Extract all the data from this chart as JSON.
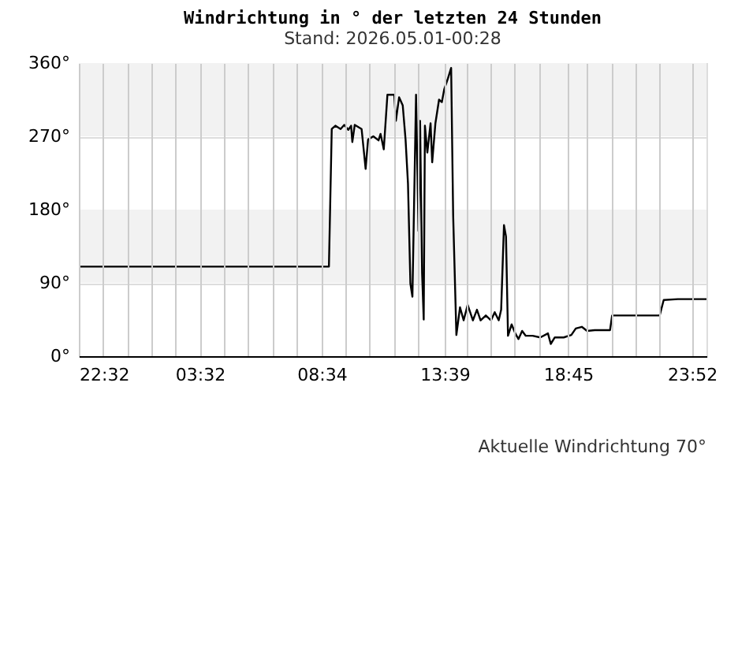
{
  "chart_data": {
    "type": "line",
    "title": "Windrichtung in ° der letzten 24 Stunden",
    "subtitle": "Stand: 2026.05.01-00:28",
    "annotations": [
      "Aktuelle Windrichtung 70°"
    ],
    "xlim": [
      "2026-04-29T22:32",
      "2026-05-01T00:28"
    ],
    "xticks": [
      {
        "value": "2026-04-29T22:32",
        "label": "22:32"
      },
      {
        "value": "2026-04-29T23:32",
        "label": null
      },
      {
        "value": "2026-04-30T00:32",
        "label": null
      },
      {
        "value": "2026-04-30T01:32",
        "label": null
      },
      {
        "value": "2026-04-30T02:32",
        "label": null
      },
      {
        "value": "2026-04-30T03:32",
        "label": "03:32"
      },
      {
        "value": "2026-04-30T04:32",
        "label": null
      },
      {
        "value": "2026-04-30T05:32",
        "label": null
      },
      {
        "value": "2026-04-30T06:32",
        "label": null
      },
      {
        "value": "2026-04-30T07:32",
        "label": null
      },
      {
        "value": "2026-04-30T08:34",
        "label": "08:34"
      },
      {
        "value": "2026-04-30T09:32",
        "label": null
      },
      {
        "value": "2026-04-30T10:32",
        "label": null
      },
      {
        "value": "2026-04-30T11:32",
        "label": null
      },
      {
        "value": "2026-04-30T12:32",
        "label": null
      },
      {
        "value": "2026-04-30T13:39",
        "label": "13:39"
      },
      {
        "value": "2026-04-30T14:32",
        "label": null
      },
      {
        "value": "2026-04-30T15:32",
        "label": null
      },
      {
        "value": "2026-04-30T16:32",
        "label": null
      },
      {
        "value": "2026-04-30T17:32",
        "label": null
      },
      {
        "value": "2026-04-30T18:45",
        "label": "18:45"
      },
      {
        "value": "2026-04-30T19:32",
        "label": null
      },
      {
        "value": "2026-04-30T20:32",
        "label": null
      },
      {
        "value": "2026-04-30T21:32",
        "label": null
      },
      {
        "value": "2026-04-30T22:32",
        "label": null
      },
      {
        "value": "2026-04-30T23:52",
        "label": "23:52"
      }
    ],
    "ylim": [
      0,
      360
    ],
    "yticks": [
      {
        "value": 0,
        "label": "0°"
      },
      {
        "value": 90,
        "label": "90°"
      },
      {
        "value": 180,
        "label": "180°"
      },
      {
        "value": 270,
        "label": "270°"
      },
      {
        "value": 360,
        "label": "360°"
      }
    ],
    "grid": true,
    "marker": "none",
    "line_style": "solid",
    "bands": [
      {
        "axis": "y",
        "from": 270,
        "to": 360,
        "color": "#f2f2f2"
      },
      {
        "axis": "y",
        "from": 90,
        "to": 180,
        "color": "#f2f2f2"
      }
    ],
    "series": [
      {
        "color": "#000000",
        "x": [
          "2026-04-29T22:32",
          "2026-04-30T08:52",
          "2026-04-30T08:59",
          "2026-04-30T09:08",
          "2026-04-30T09:21",
          "2026-04-30T09:30",
          "2026-04-30T09:40",
          "2026-04-30T09:47",
          "2026-04-30T09:50",
          "2026-04-30T09:56",
          "2026-04-30T10:13",
          "2026-04-30T10:23",
          "2026-04-30T10:29",
          "2026-04-30T10:42",
          "2026-04-30T10:55",
          "2026-04-30T11:00",
          "2026-04-30T11:08",
          "2026-04-30T11:17",
          "2026-04-30T11:34",
          "2026-04-30T11:38",
          "2026-04-30T11:46",
          "2026-04-30T11:55",
          "2026-04-30T12:02",
          "2026-04-30T12:08",
          "2026-04-30T12:14",
          "2026-04-30T12:19",
          "2026-04-30T12:28",
          "2026-04-30T12:34",
          "2026-04-30T12:38",
          "2026-04-30T12:43",
          "2026-04-30T12:47",
          "2026-04-30T12:50",
          "2026-04-30T12:56",
          "2026-04-30T13:04",
          "2026-04-30T13:08",
          "2026-04-30T13:16",
          "2026-04-30T13:25",
          "2026-04-30T13:32",
          "2026-04-30T13:38",
          "2026-04-30T13:47",
          "2026-04-30T13:55",
          "2026-04-30T14:00",
          "2026-04-30T14:08",
          "2026-04-30T14:17",
          "2026-04-30T14:26",
          "2026-04-30T14:36",
          "2026-04-30T14:49",
          "2026-04-30T14:59",
          "2026-04-30T15:08",
          "2026-04-30T15:21",
          "2026-04-30T15:34",
          "2026-04-30T15:43",
          "2026-04-30T15:53",
          "2026-04-30T15:59",
          "2026-04-30T16:06",
          "2026-04-30T16:11",
          "2026-04-30T16:16",
          "2026-04-30T16:25",
          "2026-04-30T16:34",
          "2026-04-30T16:42",
          "2026-04-30T16:51",
          "2026-04-30T17:00",
          "2026-04-30T17:17",
          "2026-04-30T17:36",
          "2026-04-30T17:55",
          "2026-04-30T18:02",
          "2026-04-30T18:12",
          "2026-04-30T18:34",
          "2026-04-30T18:53",
          "2026-04-30T19:04",
          "2026-04-30T19:19",
          "2026-04-30T19:32",
          "2026-04-30T19:51",
          "2026-04-30T20:29",
          "2026-04-30T20:34",
          "2026-04-30T22:32",
          "2026-04-30T22:42",
          "2026-04-30T23:17",
          "2026-05-01T00:28"
        ],
        "values": [
          110,
          110,
          279,
          283,
          279,
          284,
          278,
          283,
          263,
          284,
          279,
          230,
          266,
          270,
          265,
          273,
          254,
          321,
          321,
          289,
          318,
          308,
          266,
          212,
          89,
          73,
          321,
          154,
          289,
          102,
          45,
          283,
          250,
          286,
          238,
          286,
          315,
          312,
          328,
          341,
          354,
          173,
          26,
          60,
          44,
          63,
          44,
          57,
          44,
          50,
          44,
          54,
          44,
          57,
          161,
          147,
          25,
          39,
          28,
          21,
          31,
          25,
          25,
          23,
          28,
          15,
          23,
          23,
          26,
          34,
          36,
          31,
          32,
          32,
          50,
          50,
          69,
          70,
          70
        ]
      }
    ]
  }
}
